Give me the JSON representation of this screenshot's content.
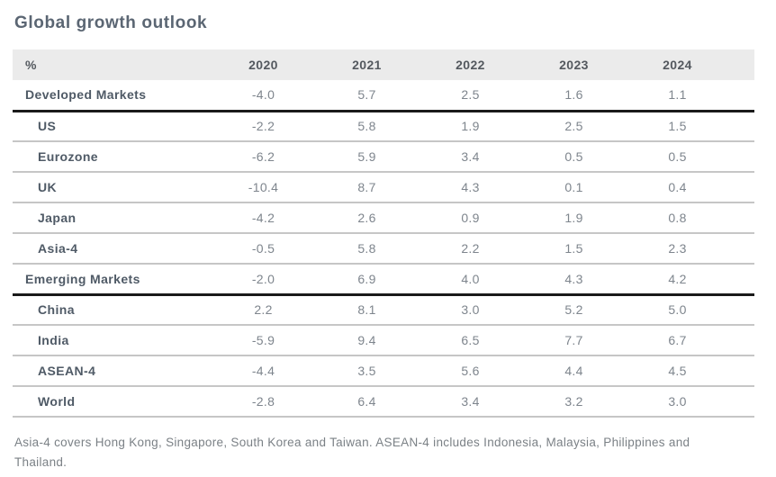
{
  "title": "Global growth outlook",
  "table": {
    "header": [
      "%",
      "2020",
      "2021",
      "2022",
      "2023",
      "2024"
    ],
    "rows": [
      {
        "label": "Developed Markets",
        "type": "group",
        "values": [
          "-4.0",
          "5.7",
          "2.5",
          "1.6",
          "1.1"
        ]
      },
      {
        "label": "US",
        "type": "sub",
        "values": [
          "-2.2",
          "5.8",
          "1.9",
          "2.5",
          "1.5"
        ]
      },
      {
        "label": "Eurozone",
        "type": "sub",
        "values": [
          "-6.2",
          "5.9",
          "3.4",
          "0.5",
          "0.5"
        ]
      },
      {
        "label": "UK",
        "type": "sub",
        "values": [
          "-10.4",
          "8.7",
          "4.3",
          "0.1",
          "0.4"
        ]
      },
      {
        "label": "Japan",
        "type": "sub",
        "values": [
          "-4.2",
          "2.6",
          "0.9",
          "1.9",
          "0.8"
        ]
      },
      {
        "label": "Asia-4",
        "type": "sub",
        "values": [
          "-0.5",
          "5.8",
          "2.2",
          "1.5",
          "2.3"
        ]
      },
      {
        "label": "Emerging Markets",
        "type": "group",
        "values": [
          "-2.0",
          "6.9",
          "4.0",
          "4.3",
          "4.2"
        ]
      },
      {
        "label": "China",
        "type": "sub",
        "values": [
          "2.2",
          "8.1",
          "3.0",
          "5.2",
          "5.0"
        ]
      },
      {
        "label": "India",
        "type": "sub",
        "values": [
          "-5.9",
          "9.4",
          "6.5",
          "7.7",
          "6.7"
        ]
      },
      {
        "label": "ASEAN-4",
        "type": "sub",
        "values": [
          "-4.4",
          "3.5",
          "5.6",
          "4.4",
          "4.5"
        ]
      },
      {
        "label": "World",
        "type": "sub",
        "values": [
          "-2.8",
          "6.4",
          "3.4",
          "3.2",
          "3.0"
        ]
      }
    ]
  },
  "footnote": "Asia-4 covers Hong Kong, Singapore, South Korea and Taiwan. ASEAN-4 includes Indonesia, Malaysia, Philippines and Thailand.",
  "colors": {
    "title_text": "#5b6673",
    "header_background": "#ebebeb",
    "header_text": "#54595f",
    "row_label_text": "#4f5a66",
    "value_text": "#7e858d",
    "row_rule": "#c6c6c6",
    "group_rule": "#1a1a1a",
    "footnote_text": "#7b8186"
  },
  "chart_data": {
    "type": "table",
    "title": "Global growth outlook",
    "unit": "%",
    "categories": [
      "2020",
      "2021",
      "2022",
      "2023",
      "2024"
    ],
    "series": [
      {
        "name": "Developed Markets",
        "values": [
          -4.0,
          5.7,
          2.5,
          1.6,
          1.1
        ]
      },
      {
        "name": "US",
        "values": [
          -2.2,
          5.8,
          1.9,
          2.5,
          1.5
        ]
      },
      {
        "name": "Eurozone",
        "values": [
          -6.2,
          5.9,
          3.4,
          0.5,
          0.5
        ]
      },
      {
        "name": "UK",
        "values": [
          -10.4,
          8.7,
          4.3,
          0.1,
          0.4
        ]
      },
      {
        "name": "Japan",
        "values": [
          -4.2,
          2.6,
          0.9,
          1.9,
          0.8
        ]
      },
      {
        "name": "Asia-4",
        "values": [
          -0.5,
          5.8,
          2.2,
          1.5,
          2.3
        ]
      },
      {
        "name": "Emerging Markets",
        "values": [
          -2.0,
          6.9,
          4.0,
          4.3,
          4.2
        ]
      },
      {
        "name": "China",
        "values": [
          2.2,
          8.1,
          3.0,
          5.2,
          5.0
        ]
      },
      {
        "name": "India",
        "values": [
          -5.9,
          9.4,
          6.5,
          7.7,
          6.7
        ]
      },
      {
        "name": "ASEAN-4",
        "values": [
          -4.4,
          3.5,
          5.6,
          4.4,
          4.5
        ]
      },
      {
        "name": "World",
        "values": [
          -2.8,
          6.4,
          3.4,
          3.2,
          3.0
        ]
      }
    ],
    "annotations": [
      "Asia-4 covers Hong Kong, Singapore, South Korea and Taiwan. ASEAN-4 includes Indonesia, Malaysia, Philippines and Thailand."
    ]
  }
}
